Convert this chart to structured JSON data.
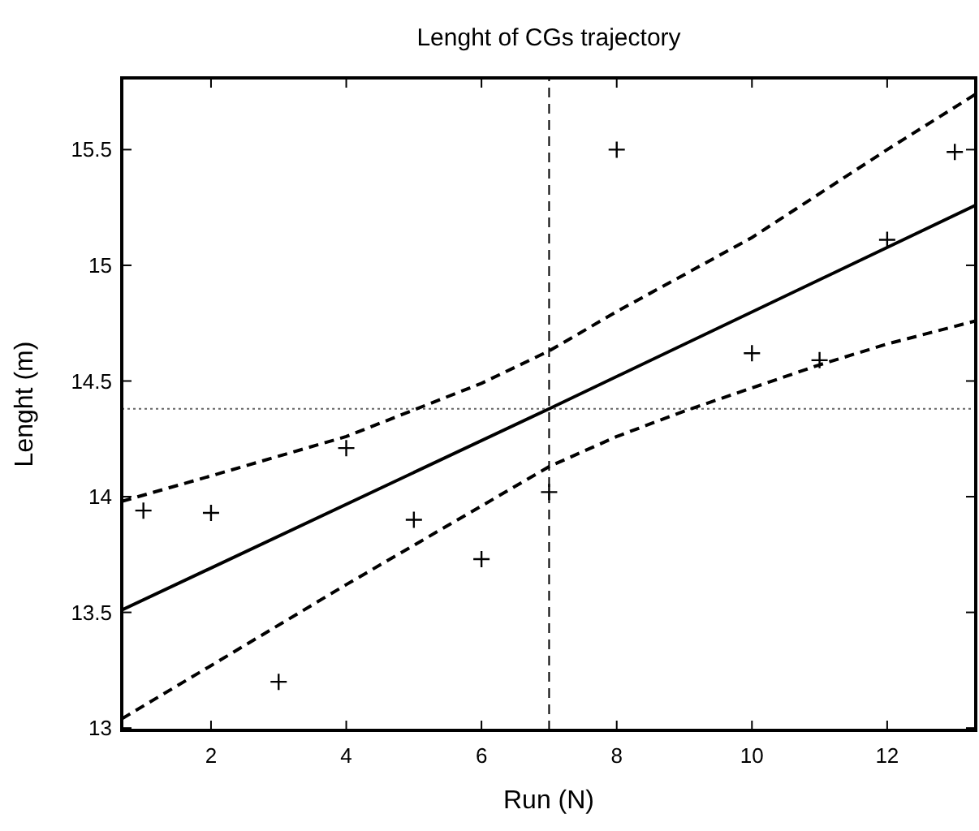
{
  "chart_data": {
    "type": "scatter",
    "title": "Lenght of CGs trajectory",
    "xlabel": "Run (N)",
    "ylabel": "Lenght (m)",
    "xlim": [
      0.68,
      13.31
    ],
    "xticks": [
      2,
      4,
      6,
      8,
      10,
      12
    ],
    "ylim": [
      12.99,
      15.81
    ],
    "yticks": [
      13,
      13.5,
      14,
      14.5,
      15,
      15.5
    ],
    "x": [
      1,
      2,
      3,
      4,
      5,
      6,
      7,
      8,
      10,
      11,
      12,
      13
    ],
    "series": [
      {
        "color": "#000000",
        "marker": "cross",
        "values": [
          13.94,
          13.93,
          13.2,
          14.21,
          13.9,
          13.73,
          14.02,
          15.5,
          14.62,
          14.59,
          15.11,
          15.49
        ]
      },
      {
        "type": "line",
        "color": "#000000",
        "line_style": "solid",
        "marker": "none",
        "x": [
          0.68,
          7,
          13.31
        ],
        "values": [
          13.51,
          14.38,
          15.26
        ]
      },
      {
        "type": "line",
        "color": "#000000",
        "line_style": "dashed",
        "marker": "none",
        "x": [
          0.68,
          2,
          4,
          6,
          7,
          8,
          10,
          12,
          13.31
        ],
        "values": [
          13.98,
          14.09,
          14.26,
          14.49,
          14.63,
          14.8,
          15.12,
          15.5,
          15.74
        ]
      },
      {
        "type": "line",
        "color": "#000000",
        "line_style": "dashed",
        "marker": "none",
        "x": [
          0.68,
          2,
          4,
          6,
          7,
          8,
          9,
          10,
          11,
          12,
          13.31
        ],
        "values": [
          13.04,
          13.27,
          13.62,
          13.96,
          14.13,
          14.26,
          14.37,
          14.47,
          14.57,
          14.66,
          14.76
        ]
      }
    ],
    "ref_lines": [
      {
        "axis": "x",
        "value": 7,
        "line_style": "dashed",
        "color": "#000000"
      },
      {
        "axis": "y",
        "value": 14.38,
        "line_style": "dotted",
        "color": "#666666"
      }
    ],
    "grid": false
  }
}
